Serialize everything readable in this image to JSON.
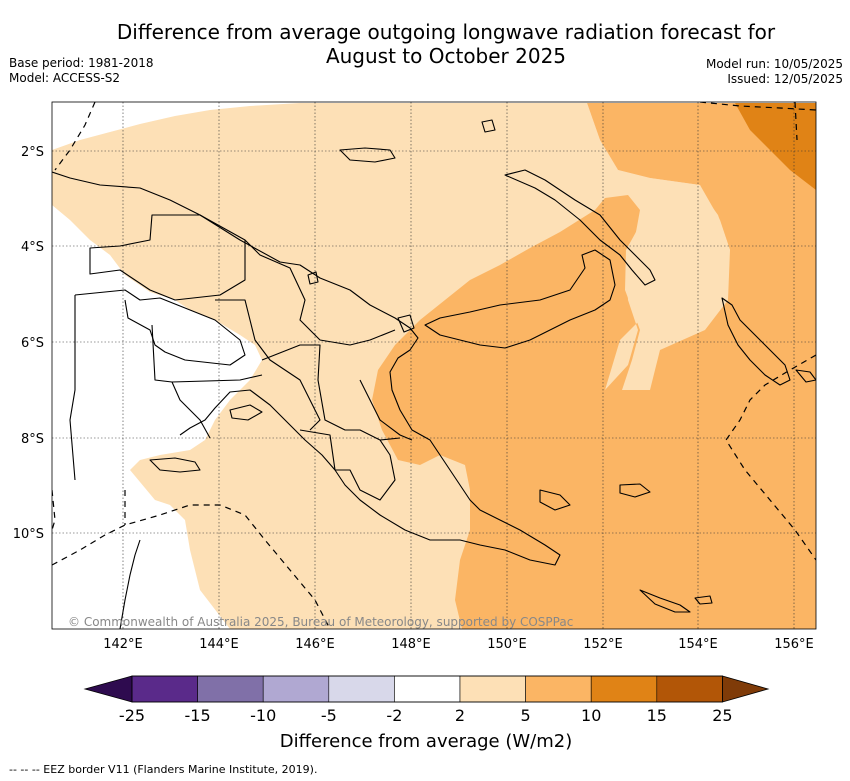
{
  "title_line1": "Difference from average outgoing longwave radiation forecast for",
  "title_line2": "August to October 2025",
  "base_period": "Base period: 1981-2018",
  "model": "Model: ACCESS-S2",
  "model_run": "Model run: 10/05/2025",
  "issued": "Issued: 12/05/2025",
  "copyright": "© Commonwealth of Australia 2025, Bureau of Meteorology, supported by COSPPac",
  "footnote": "--  --  -- EEZ border V11 (Flanders Marine Institute, 2019).",
  "map": {
    "lon_range": [
      140.5,
      156.5
    ],
    "lat_range": [
      -11.9,
      -1.1
    ],
    "lon_ticks": [
      "142°E",
      "144°E",
      "146°E",
      "148°E",
      "150°E",
      "152°E",
      "154°E",
      "156°E"
    ],
    "lat_ticks": [
      "2°S",
      "4°S",
      "6°S",
      "8°S",
      "10°S"
    ],
    "gridlines": true
  },
  "colorbar": {
    "title": "Difference from average (W/m2)",
    "labels": [
      "-25",
      "-15",
      "-10",
      "-5",
      "-2",
      "2",
      "5",
      "10",
      "15",
      "25"
    ],
    "colors": [
      "#2e0b4f",
      "#5a2a8a",
      "#8070a8",
      "#b0a8d2",
      "#d8d8ea",
      "#ffffff",
      "#fde0b6",
      "#fbb564",
      "#e08316",
      "#b25607",
      "#7f3b08"
    ]
  },
  "fill_colors": {
    "land_neutral": "#ffffff",
    "light_orange": "#fde0b6",
    "orange": "#fbb564",
    "dark_orange": "#e08316"
  }
}
